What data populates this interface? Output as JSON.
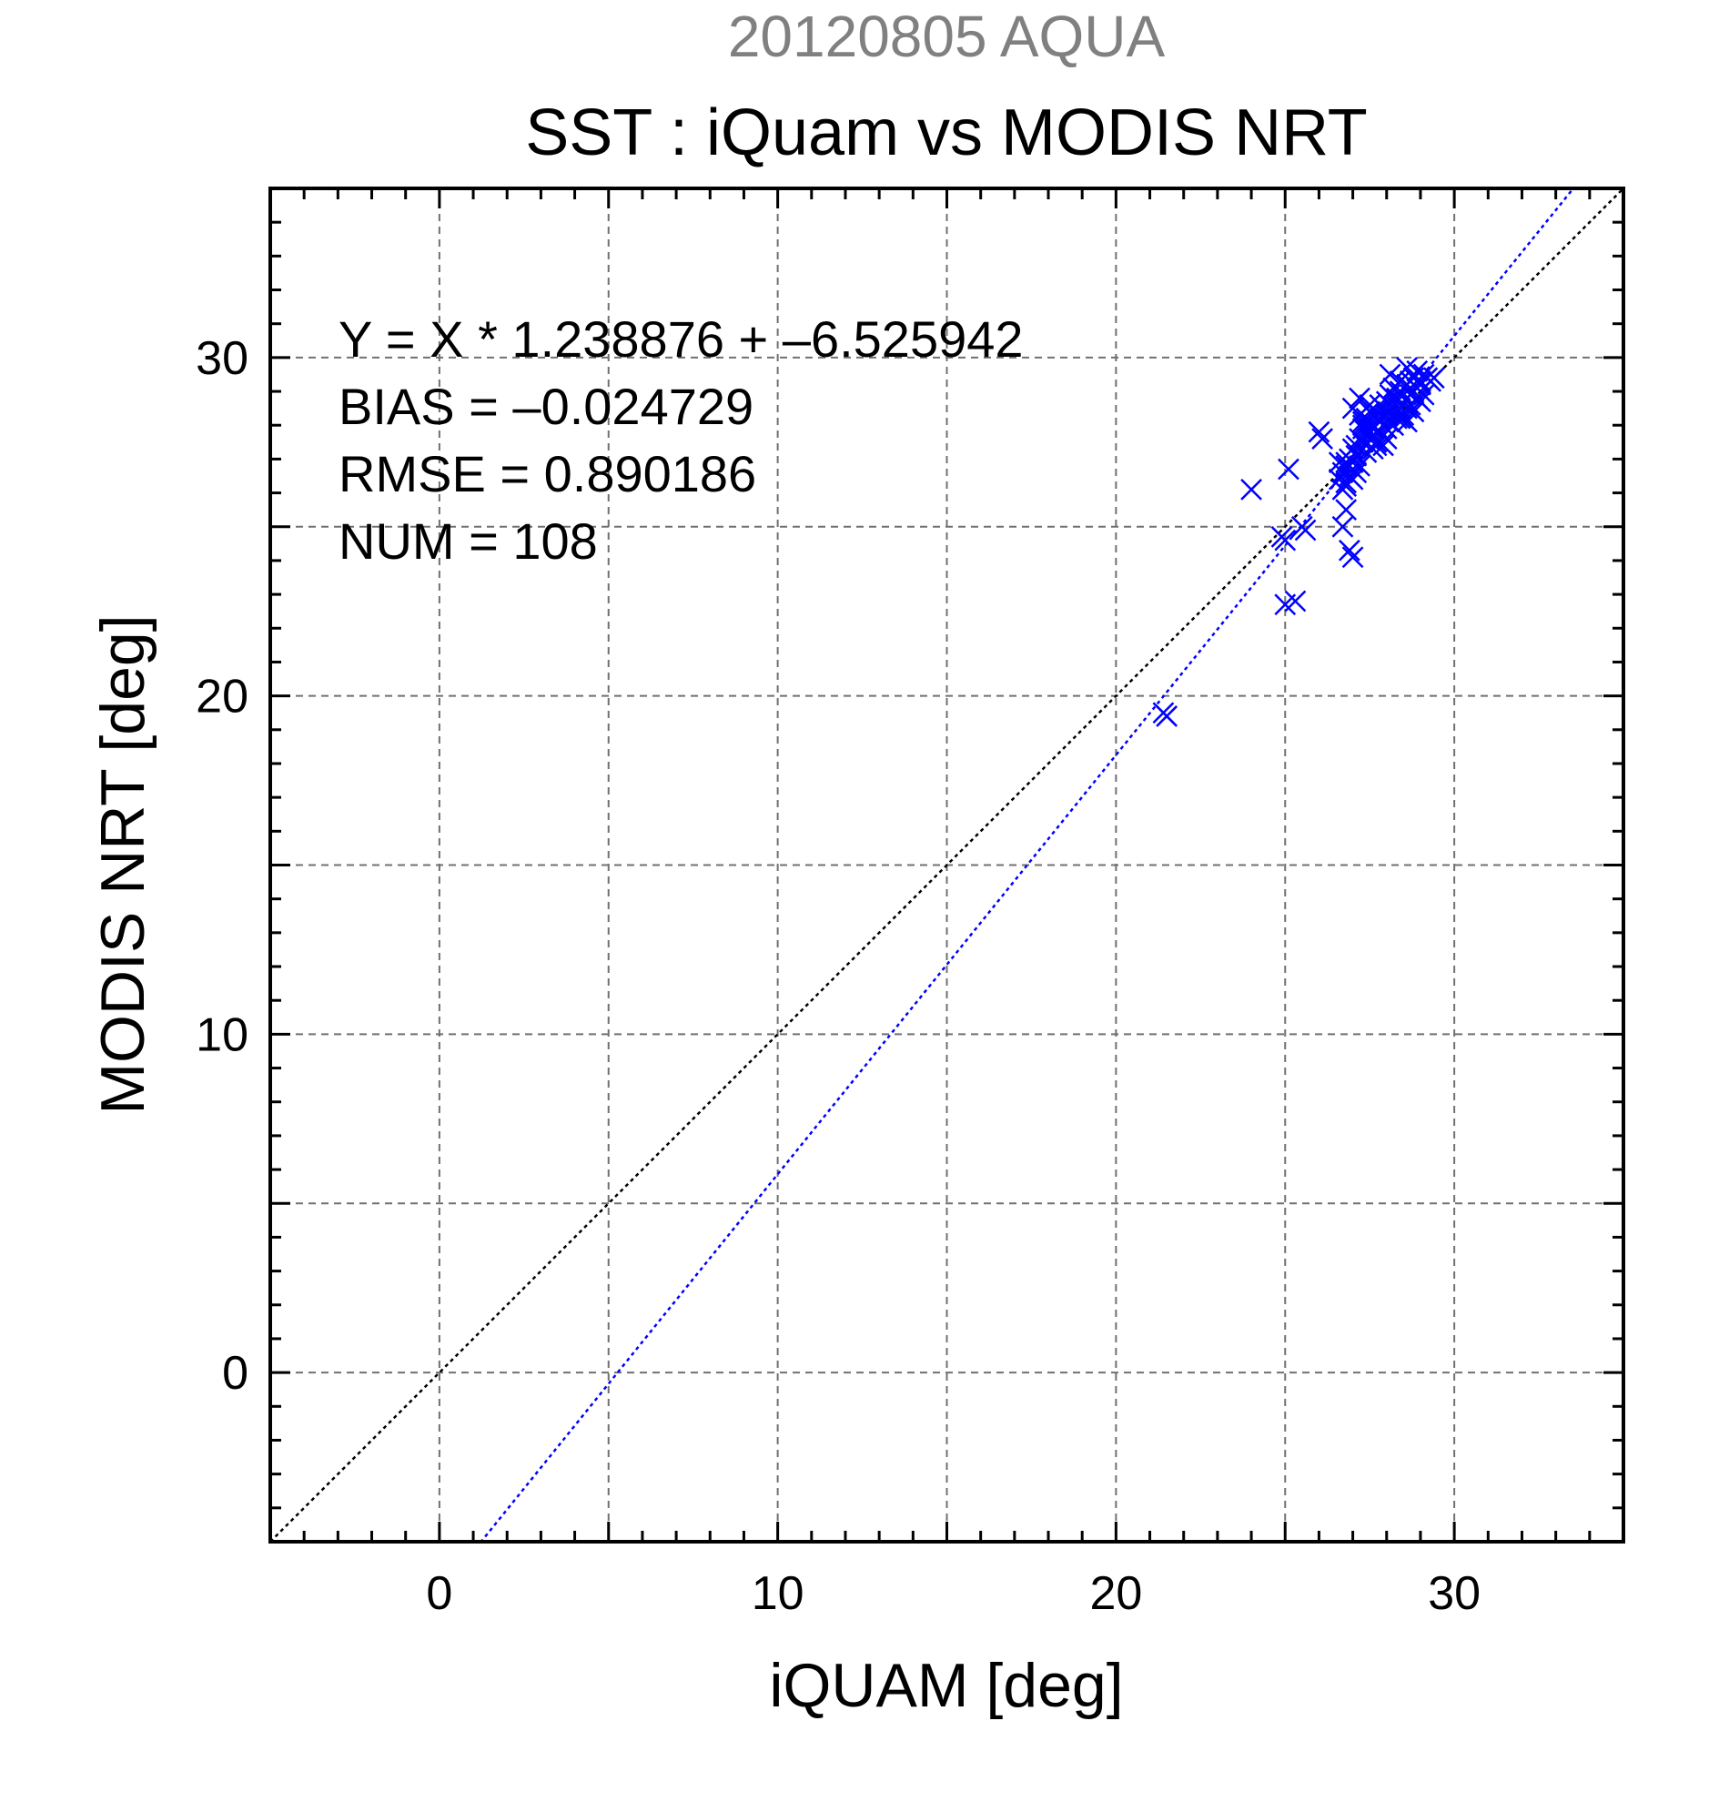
{
  "chart_data": {
    "type": "scatter",
    "suptitle": "20120805 AQUA",
    "title": "SST : iQuam vs MODIS NRT",
    "xlabel": "iQUAM [deg]",
    "ylabel": "MODIS NRT [deg]",
    "xlim": [
      -5,
      35
    ],
    "ylim": [
      -5,
      35
    ],
    "xticks": [
      0,
      10,
      20,
      30
    ],
    "yticks": [
      0,
      10,
      20,
      30
    ],
    "grid": true,
    "annotations": [
      "Y = X * 1.238876 + –6.525942",
      "BIAS = –0.024729",
      "RMSE = 0.890186",
      "NUM = 108"
    ],
    "fit_line": {
      "slope": 1.238876,
      "intercept": -6.525942,
      "color": "#0000ff"
    },
    "identity_line": {
      "slope": 1,
      "intercept": 0,
      "color": "#000000"
    },
    "series": [
      {
        "marker": "x",
        "color": "#0000ff",
        "points": [
          [
            21.4,
            19.5
          ],
          [
            21.5,
            19.4
          ],
          [
            24.0,
            26.1
          ],
          [
            24.9,
            24.7
          ],
          [
            25.0,
            24.6
          ],
          [
            25.1,
            26.7
          ],
          [
            25.0,
            22.7
          ],
          [
            25.3,
            22.8
          ],
          [
            25.5,
            25.0
          ],
          [
            25.6,
            24.9
          ],
          [
            26.0,
            27.8
          ],
          [
            26.1,
            27.6
          ],
          [
            26.6,
            26.4
          ],
          [
            26.7,
            26.1
          ],
          [
            26.8,
            26.8
          ],
          [
            26.6,
            26.9
          ],
          [
            26.8,
            26.2
          ],
          [
            26.8,
            25.5
          ],
          [
            26.7,
            25.0
          ],
          [
            26.9,
            24.3
          ],
          [
            27.0,
            24.1
          ],
          [
            26.9,
            26.5
          ],
          [
            27.0,
            26.7
          ],
          [
            27.1,
            26.6
          ],
          [
            27.0,
            26.4
          ],
          [
            26.7,
            26.6
          ],
          [
            26.8,
            26.3
          ],
          [
            27.0,
            26.9
          ],
          [
            27.2,
            26.8
          ],
          [
            27.1,
            27.1
          ],
          [
            27.0,
            27.3
          ],
          [
            27.3,
            27.5
          ],
          [
            27.4,
            27.8
          ],
          [
            27.2,
            27.6
          ],
          [
            27.5,
            27.6
          ],
          [
            27.6,
            27.9
          ],
          [
            27.4,
            27.9
          ],
          [
            27.3,
            28.0
          ],
          [
            27.6,
            27.7
          ],
          [
            27.7,
            27.5
          ],
          [
            27.8,
            27.8
          ],
          [
            27.5,
            28.1
          ],
          [
            27.9,
            28.0
          ],
          [
            28.0,
            27.9
          ],
          [
            27.8,
            28.2
          ],
          [
            28.1,
            28.1
          ],
          [
            27.9,
            27.4
          ],
          [
            27.6,
            27.3
          ],
          [
            27.4,
            27.2
          ],
          [
            27.7,
            27.4
          ],
          [
            28.0,
            27.6
          ],
          [
            27.6,
            28.3
          ],
          [
            27.4,
            28.2
          ],
          [
            27.2,
            28.3
          ],
          [
            27.3,
            27.9
          ],
          [
            27.5,
            27.8
          ],
          [
            27.0,
            28.5
          ],
          [
            27.2,
            28.8
          ],
          [
            27.5,
            28.6
          ],
          [
            27.7,
            28.4
          ],
          [
            28.0,
            28.3
          ],
          [
            28.2,
            28.0
          ],
          [
            28.3,
            28.4
          ],
          [
            28.1,
            28.6
          ],
          [
            28.4,
            28.5
          ],
          [
            28.5,
            28.9
          ],
          [
            28.3,
            28.8
          ],
          [
            28.6,
            29.2
          ],
          [
            28.8,
            29.0
          ],
          [
            28.4,
            29.3
          ],
          [
            28.2,
            29.1
          ],
          [
            28.1,
            29.5
          ],
          [
            28.3,
            28.2
          ],
          [
            28.5,
            28.3
          ],
          [
            28.7,
            28.6
          ],
          [
            28.9,
            28.8
          ],
          [
            28.6,
            28.5
          ],
          [
            28.7,
            28.9
          ],
          [
            29.0,
            29.3
          ],
          [
            29.1,
            29.5
          ],
          [
            28.9,
            29.6
          ],
          [
            29.2,
            29.4
          ],
          [
            29.0,
            29.2
          ],
          [
            28.8,
            29.4
          ],
          [
            29.3,
            29.3
          ],
          [
            29.4,
            29.4
          ],
          [
            28.6,
            28.1
          ],
          [
            28.8,
            28.4
          ],
          [
            29.0,
            28.7
          ],
          [
            29.1,
            28.9
          ],
          [
            28.5,
            28.2
          ],
          [
            28.0,
            28.7
          ],
          [
            27.8,
            28.6
          ],
          [
            28.1,
            28.9
          ],
          [
            28.4,
            29.0
          ],
          [
            28.6,
            29.7
          ],
          [
            28.7,
            29.3
          ],
          [
            28.9,
            29.1
          ],
          [
            27.9,
            28.5
          ],
          [
            27.5,
            28.4
          ],
          [
            27.3,
            28.1
          ],
          [
            26.9,
            27.0
          ],
          [
            27.1,
            27.4
          ],
          [
            26.8,
            26.9
          ],
          [
            27.6,
            28.0
          ],
          [
            28.2,
            28.8
          ],
          [
            28.4,
            28.2
          ],
          [
            28.0,
            28.4
          ]
        ]
      }
    ]
  }
}
